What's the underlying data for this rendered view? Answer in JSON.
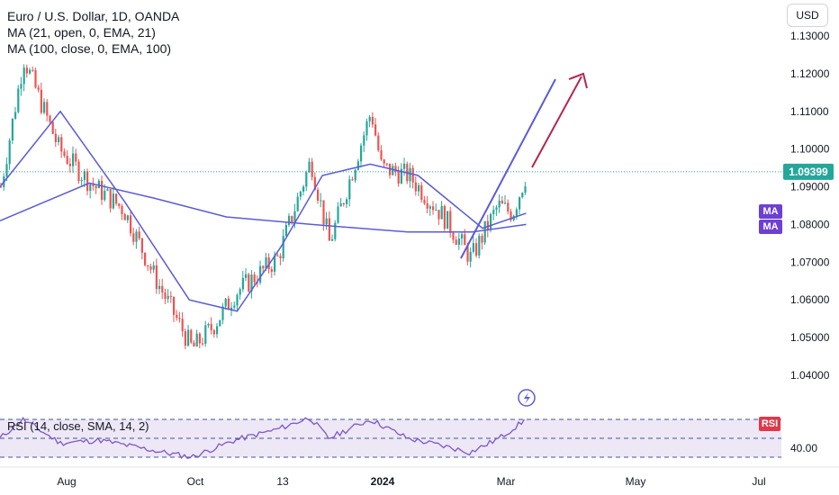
{
  "header": {
    "symbol_title": "Euro / U.S. Dollar, 1D, OANDA",
    "indicator_1": "MA (21, open, 0, EMA, 21)",
    "indicator_2": "MA (100, close, 0, EMA, 100)",
    "currency": "USD"
  },
  "price_axis": {
    "ticks": [
      "1.13000",
      "1.12000",
      "1.11000",
      "1.10000",
      "1.09000",
      "1.08000",
      "1.07000",
      "1.06000",
      "1.05000",
      "1.04000"
    ],
    "current_price": "1.09399"
  },
  "rsi_panel": {
    "legend": "RSI (14, close, SMA, 14, 2)",
    "tick": "40.00",
    "badge": "RSI"
  },
  "ma_badges": [
    "MA",
    "MA"
  ],
  "time_axis": {
    "labels": [
      "Aug",
      "Oct",
      "13",
      "2024",
      "Mar",
      "May",
      "Jul"
    ]
  },
  "colors": {
    "up_candle": "#26a69a",
    "down_candle": "#ef5350",
    "ma_line": "#5b5bd6",
    "arrow": "#b2264f",
    "rsi_line": "#7e57c2",
    "rsi_band": "#ede7f6",
    "price_badge": "#26a69a",
    "ma_badge": "#6d3fd3",
    "rsi_badge": "#e0384b"
  },
  "chart_data": {
    "type": "candlestick",
    "title": "Euro / U.S. Dollar, 1D, OANDA",
    "x_range": [
      "2023-07",
      "2024-07"
    ],
    "ylim": [
      1.035,
      1.135
    ],
    "price_series": [
      {
        "date": "2023-07-03",
        "value": 1.09
      },
      {
        "date": "2023-07-14",
        "value": 1.124
      },
      {
        "date": "2023-07-31",
        "value": 1.1
      },
      {
        "date": "2023-08-15",
        "value": 1.091
      },
      {
        "date": "2023-08-31",
        "value": 1.084
      },
      {
        "date": "2023-09-15",
        "value": 1.066
      },
      {
        "date": "2023-10-03",
        "value": 1.047
      },
      {
        "date": "2023-10-13",
        "value": 1.053
      },
      {
        "date": "2023-10-24",
        "value": 1.062
      },
      {
        "date": "2023-11-13",
        "value": 1.071
      },
      {
        "date": "2023-11-29",
        "value": 1.097
      },
      {
        "date": "2023-12-08",
        "value": 1.075
      },
      {
        "date": "2023-12-28",
        "value": 1.11
      },
      {
        "date": "2024-01-02",
        "value": 1.095
      },
      {
        "date": "2024-01-15",
        "value": 1.093
      },
      {
        "date": "2024-02-01",
        "value": 1.082
      },
      {
        "date": "2024-02-14",
        "value": 1.071
      },
      {
        "date": "2024-02-27",
        "value": 1.085
      },
      {
        "date": "2024-03-05",
        "value": 1.083
      },
      {
        "date": "2024-03-12",
        "value": 1.094
      }
    ],
    "series": [
      {
        "name": "MA (21, open, 0, EMA, 21)",
        "points": [
          {
            "date": "2023-07-03",
            "value": 1.09
          },
          {
            "date": "2023-08-01",
            "value": 1.11
          },
          {
            "date": "2023-09-01",
            "value": 1.086
          },
          {
            "date": "2023-10-02",
            "value": 1.06
          },
          {
            "date": "2023-10-25",
            "value": 1.057
          },
          {
            "date": "2023-11-15",
            "value": 1.074
          },
          {
            "date": "2023-12-05",
            "value": 1.093
          },
          {
            "date": "2023-12-28",
            "value": 1.096
          },
          {
            "date": "2024-01-20",
            "value": 1.093
          },
          {
            "date": "2024-02-20",
            "value": 1.079
          },
          {
            "date": "2024-03-12",
            "value": 1.083
          }
        ]
      },
      {
        "name": "MA (100, close, 0, EMA, 100)",
        "points": [
          {
            "date": "2023-07-03",
            "value": 1.081
          },
          {
            "date": "2023-08-15",
            "value": 1.091
          },
          {
            "date": "2023-09-15",
            "value": 1.087
          },
          {
            "date": "2023-10-20",
            "value": 1.082
          },
          {
            "date": "2023-11-30",
            "value": 1.08
          },
          {
            "date": "2024-01-15",
            "value": 1.078
          },
          {
            "date": "2024-02-15",
            "value": 1.078
          },
          {
            "date": "2024-03-12",
            "value": 1.08
          }
        ]
      }
    ],
    "current_price": 1.09399,
    "rsi_levels": [
      70,
      50,
      30
    ],
    "rsi_series": [
      {
        "date": "2023-07-03",
        "value": 50
      },
      {
        "date": "2023-07-14",
        "value": 70
      },
      {
        "date": "2023-08-01",
        "value": 45
      },
      {
        "date": "2023-08-20",
        "value": 48
      },
      {
        "date": "2023-09-20",
        "value": 35
      },
      {
        "date": "2023-10-03",
        "value": 30
      },
      {
        "date": "2023-10-24",
        "value": 48
      },
      {
        "date": "2023-11-14",
        "value": 60
      },
      {
        "date": "2023-11-29",
        "value": 72
      },
      {
        "date": "2023-12-08",
        "value": 50
      },
      {
        "date": "2023-12-28",
        "value": 70
      },
      {
        "date": "2024-01-15",
        "value": 50
      },
      {
        "date": "2024-02-05",
        "value": 40
      },
      {
        "date": "2024-02-14",
        "value": 35
      },
      {
        "date": "2024-02-28",
        "value": 50
      },
      {
        "date": "2024-03-12",
        "value": 70
      }
    ]
  }
}
